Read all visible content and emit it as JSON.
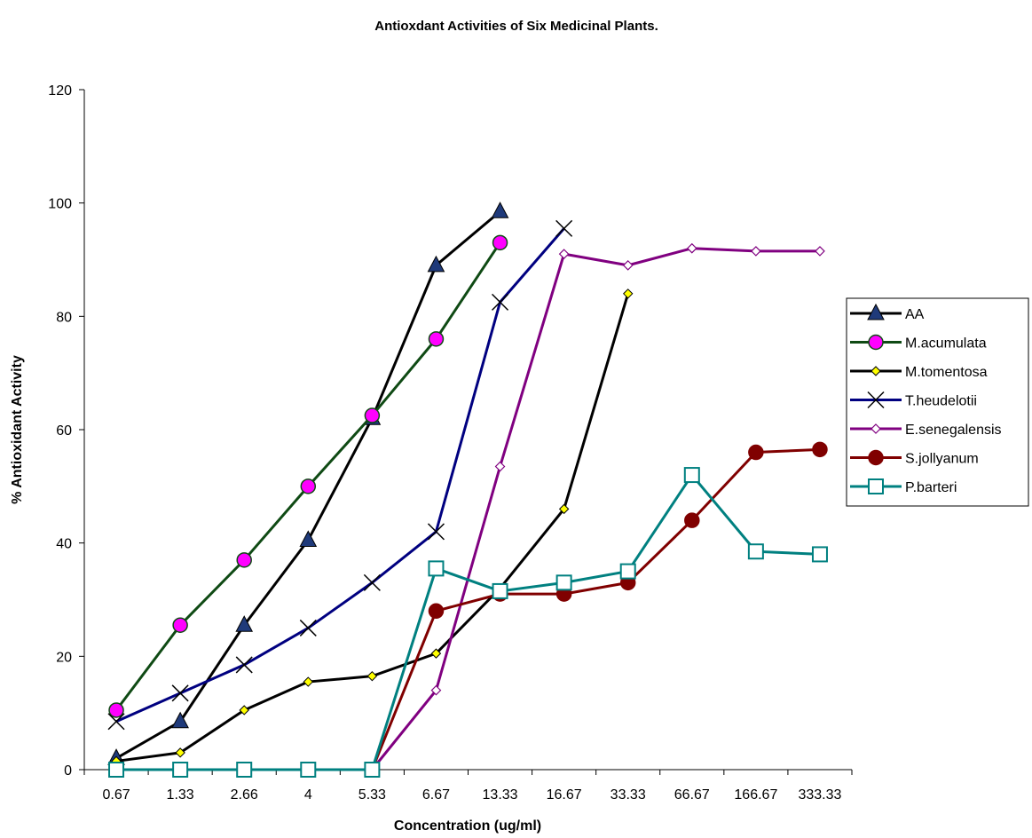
{
  "chart_data": {
    "type": "line",
    "title": "Antioxdant Activities of Six Medicinal Plants.",
    "xlabel": "Concentration (ug/ml)",
    "ylabel": "% Antioxidant Activity",
    "categories": [
      "0.67",
      "1.33",
      "2.66",
      "4",
      "5.33",
      "6.67",
      "13.33",
      "16.67",
      "33.33",
      "66.67",
      "166.67",
      "333.33"
    ],
    "ylim": [
      0,
      120
    ],
    "yticks": [
      "0",
      "20",
      "40",
      "60",
      "80",
      "100",
      "120"
    ],
    "grid": false,
    "legend_position": "right",
    "series": [
      {
        "name": "AA",
        "color": "#000000",
        "marker": "triangle",
        "marker_fill": "#1f3a7a",
        "values": [
          2,
          8.5,
          25.5,
          40.5,
          62,
          89,
          98.5,
          null,
          null,
          null,
          null,
          null
        ]
      },
      {
        "name": "M.acumulata",
        "color": "#0f4a14",
        "marker": "circle",
        "marker_fill": "#ff00ff",
        "values": [
          10.5,
          25.5,
          37,
          50,
          62.5,
          76,
          93,
          null,
          null,
          null,
          null,
          null
        ]
      },
      {
        "name": "M.tomentosa",
        "color": "#000000",
        "marker": "diamond",
        "marker_fill": "#ffff00",
        "values": [
          1.5,
          3,
          10.5,
          15.5,
          16.5,
          20.5,
          32,
          46,
          84,
          null,
          null,
          null
        ]
      },
      {
        "name": "T.heudelotii",
        "color": "#000080",
        "marker": "x",
        "marker_fill": "#000000",
        "values": [
          8.5,
          13.5,
          18.5,
          25,
          33,
          42,
          82.5,
          95.5,
          null,
          null,
          null,
          null
        ]
      },
      {
        "name": "E.senegalensis",
        "color": "#800080",
        "marker": "diamond-open",
        "marker_fill": "#ffffff",
        "values": [
          null,
          null,
          null,
          null,
          0,
          14,
          53.5,
          91,
          89,
          92,
          91.5,
          91.5
        ]
      },
      {
        "name": "S.jollyanum",
        "color": "#800000",
        "marker": "circle",
        "marker_fill": "#800000",
        "values": [
          0,
          0,
          0,
          0,
          0,
          28,
          31,
          31,
          33,
          44,
          56,
          56.5
        ]
      },
      {
        "name": "P.barteri",
        "color": "#008080",
        "marker": "square-open",
        "marker_fill": "#ffffff",
        "values": [
          0,
          0,
          0,
          0,
          0,
          35.5,
          31.5,
          33,
          35,
          52,
          38.5,
          38
        ]
      }
    ]
  }
}
